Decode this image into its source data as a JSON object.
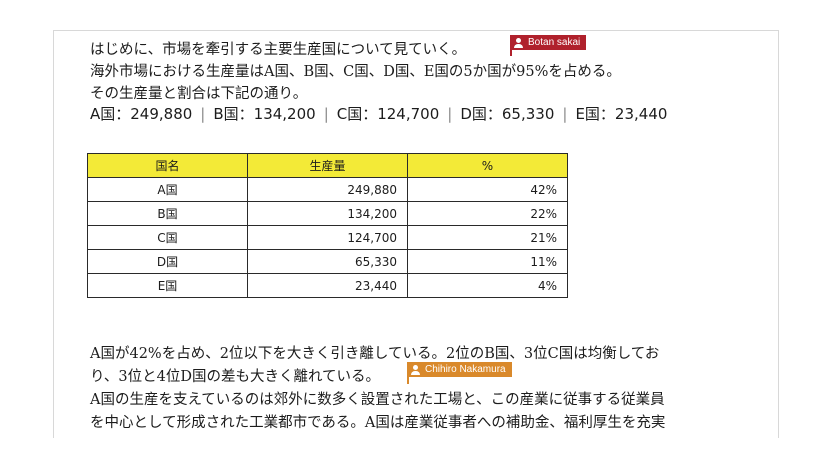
{
  "document": {
    "intro_line1": "はじめに、市場を牽引する主要生産国について見ていく。",
    "intro_line2": "海外市場における生産量はA国、B国、C国、D国、E国の5か国が95%を占める。",
    "intro_line3": "その生産量と割合は下記の通り。",
    "figures": [
      {
        "text": "A国：249,880"
      },
      {
        "text": "B国：134,200"
      },
      {
        "text": "C国：124,700"
      },
      {
        "text": "D国：65,330"
      },
      {
        "text": "E国：23,440"
      }
    ],
    "table": {
      "headers": [
        "国名",
        "生産量",
        "%"
      ],
      "rows": [
        {
          "name": "A国",
          "amount": "249,880",
          "pct": "42%"
        },
        {
          "name": "B国",
          "amount": "134,200",
          "pct": "22%"
        },
        {
          "name": "C国",
          "amount": "124,700",
          "pct": "21%"
        },
        {
          "name": "D国",
          "amount": "65,330",
          "pct": "11%"
        },
        {
          "name": "E国",
          "amount": "23,440",
          "pct": "4%"
        }
      ]
    },
    "para2_line1": "A国が42%を占め、2位以下を大きく引き離している。2位のB国、3位C国は均衡してお",
    "para2_line2": "り、3位と4位D国の差も大きく離れている。",
    "para3_line1": "A国の生産を支えているのは郊外に数多く設置された工場と、この産業に従事する従業員",
    "para3_line2": "を中心として形成された工業都市である。A国は産業従事者への補助金、福利厚生を充実"
  },
  "collaborators": [
    {
      "name": "Botan sakai",
      "color": "#b0212c",
      "icon": "user-icon"
    },
    {
      "name": "Chihiro Nakamura",
      "color": "#d9892b",
      "icon": "user-icon"
    }
  ]
}
